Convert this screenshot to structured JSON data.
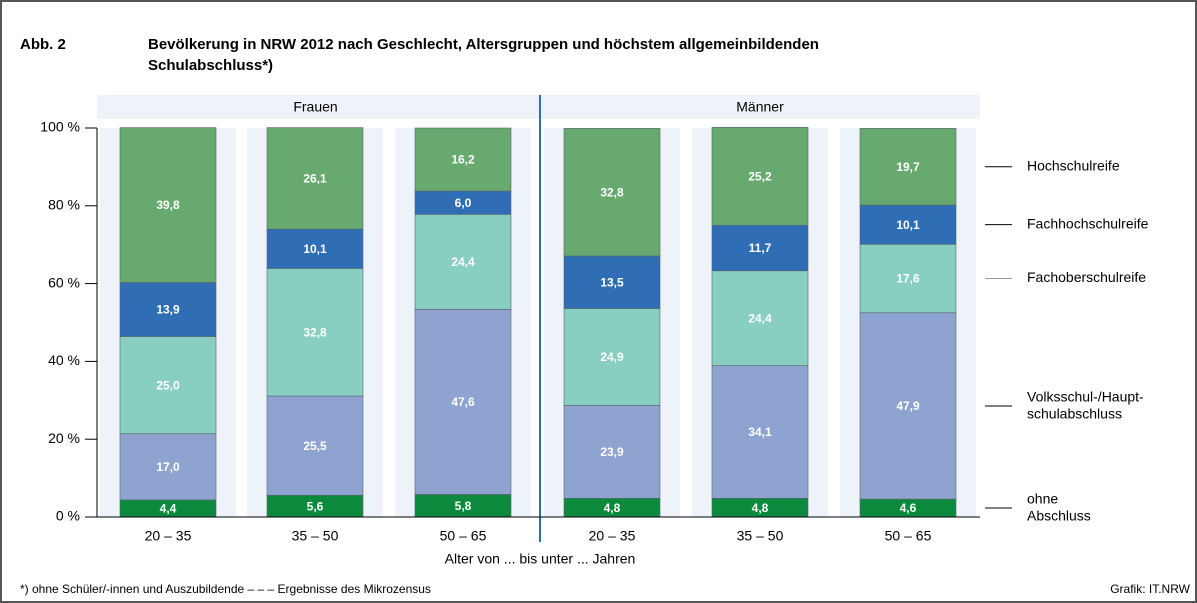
{
  "chart_data": {
    "type": "stacked_bar",
    "title_label": "Abb. 2",
    "title": [
      "Bevölkerung in NRW 2012 nach Geschlecht, Altersgruppen und höchstem allgemeinbildenden",
      "Schulabschluss*)"
    ],
    "groups": [
      "Frauen",
      "Männer"
    ],
    "categories": [
      "20 – 35",
      "35 – 50",
      "50 – 65",
      "20 – 35",
      "35 – 50",
      "50 – 65"
    ],
    "x_label": "Alter von ... bis unter ... Jahren",
    "footnote": "*) ohne Schüler/-innen und Auszubildende – – – Ergebnisse des Mikrozensus",
    "source": "Grafik: IT.NRW",
    "ylim": [
      0,
      100
    ],
    "yticks": [
      {
        "value": 0,
        "label": "0 %"
      },
      {
        "value": 20,
        "label": "20 %"
      },
      {
        "value": 40,
        "label": "40 %"
      },
      {
        "value": 60,
        "label": "60 %"
      },
      {
        "value": 80,
        "label": "80 %"
      },
      {
        "value": 100,
        "label": "100 %"
      }
    ],
    "series": [
      {
        "name": "ohne Abschluss",
        "color": "#0b8a3e",
        "values": [
          4.4,
          5.6,
          5.8,
          4.8,
          4.8,
          4.6
        ],
        "value_labels": [
          "4,4",
          "5,6",
          "5,8",
          "4,8",
          "4,8",
          "4,6"
        ]
      },
      {
        "name": "Volksschul-/Haupt- schulabschluss",
        "color": "#8fa3d1",
        "values": [
          17.0,
          25.5,
          47.6,
          23.9,
          34.1,
          47.9
        ],
        "value_labels": [
          "17,0",
          "25,5",
          "47,6",
          "23,9",
          "34,1",
          "47,9"
        ]
      },
      {
        "name": "Fachoberschulreife",
        "color": "#88cfc1",
        "values": [
          25.0,
          32.8,
          24.4,
          24.9,
          24.4,
          17.6
        ],
        "value_labels": [
          "25,0",
          "32,8",
          "24,4",
          "24,9",
          "24,4",
          "17,6"
        ]
      },
      {
        "name": "Fachhochschulreife",
        "color": "#2f6db4",
        "values": [
          13.9,
          10.1,
          6.0,
          13.5,
          11.7,
          10.1
        ],
        "value_labels": [
          "13,9",
          "10,1",
          "6,0",
          "13,5",
          "11,7",
          "10,1"
        ]
      },
      {
        "name": "Hochschulreife",
        "color": "#67a96f",
        "values": [
          39.8,
          26.1,
          16.2,
          32.8,
          25.2,
          19.7
        ],
        "value_labels": [
          "39,8",
          "26,1",
          "16,2",
          "32,8",
          "25,2",
          "19,7"
        ]
      }
    ]
  }
}
